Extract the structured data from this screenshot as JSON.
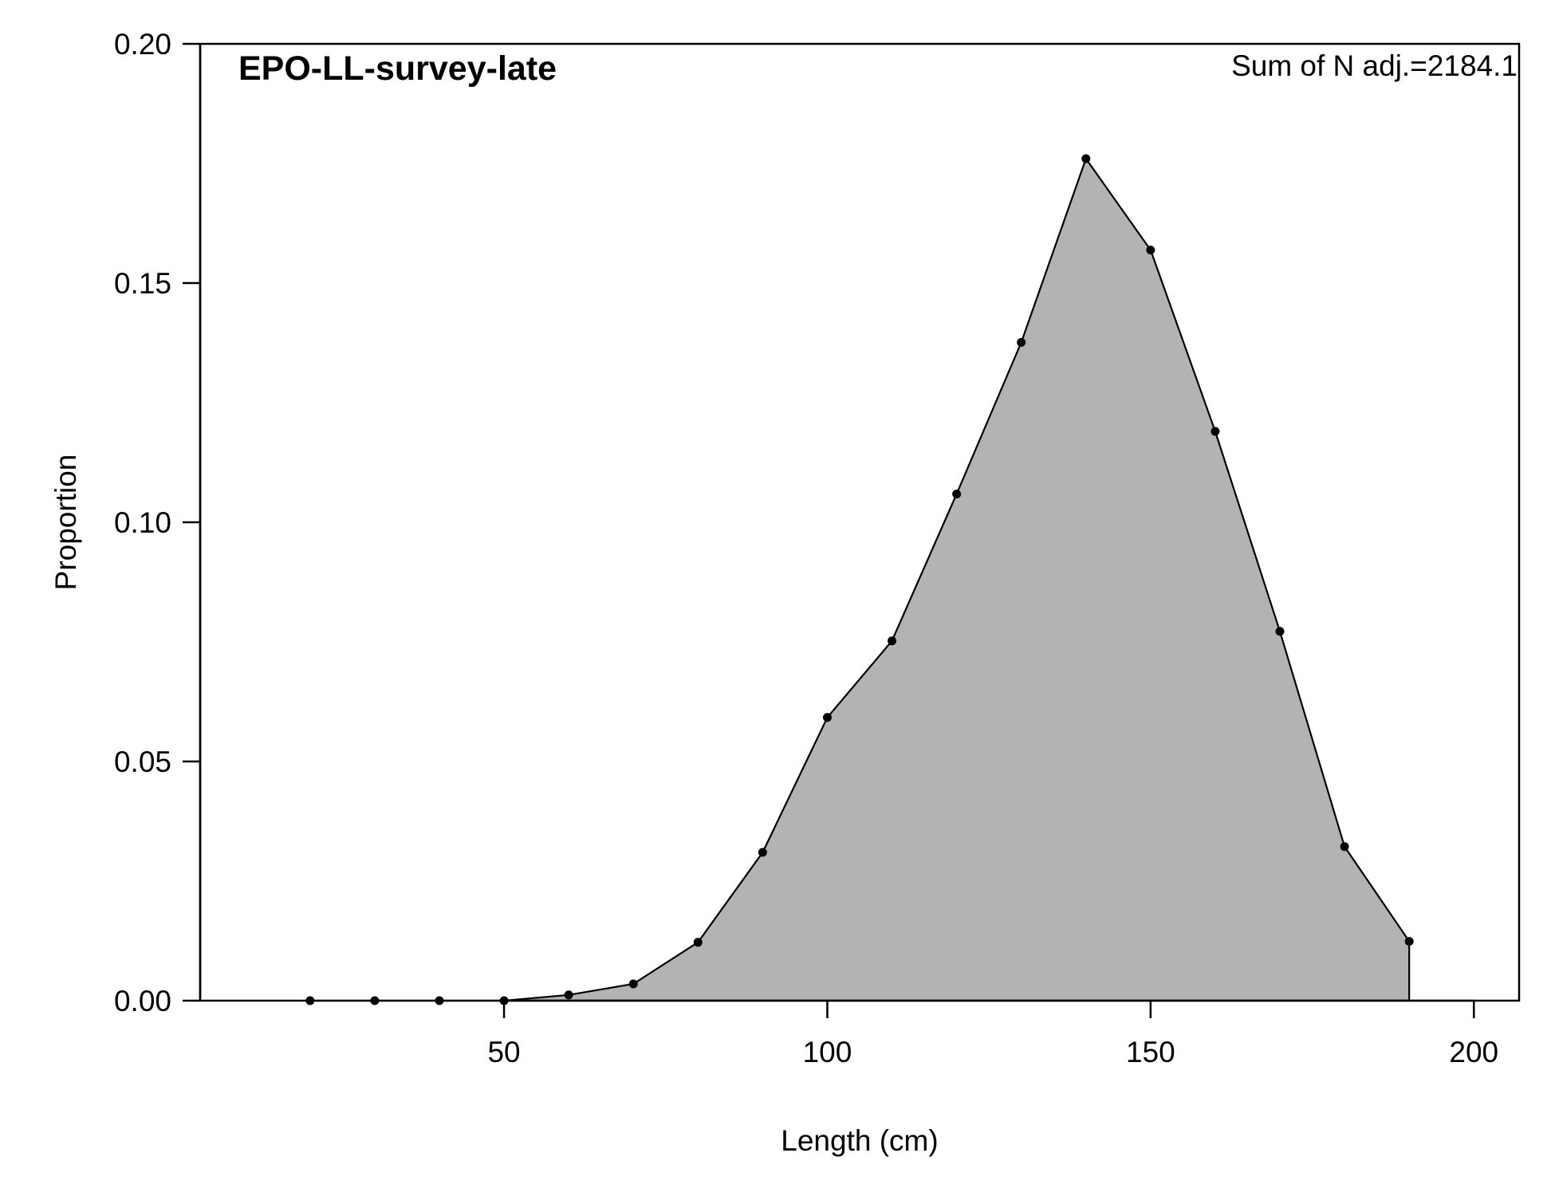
{
  "chart_data": {
    "type": "area",
    "title": "EPO-LL-survey-late",
    "annotation": "Sum of N adj.=2184.1",
    "xlabel": "Length (cm)",
    "ylabel": "Proportion",
    "xlim": [
      3,
      207
    ],
    "ylim": [
      0,
      0.2
    ],
    "x_ticks": [
      50,
      100,
      150,
      200
    ],
    "x_tick_labels": [
      "50",
      "100",
      "150",
      "200"
    ],
    "y_ticks": [
      0,
      0.05,
      0.1,
      0.15,
      0.2
    ],
    "y_tick_labels": [
      "0.00",
      "0.05",
      "0.10",
      "0.15",
      "0.20"
    ],
    "grid": false,
    "legend": "none",
    "fill_color": "#b3b3b3",
    "line_color": "#000000",
    "series": [
      {
        "x": [
          20,
          30,
          40,
          50,
          60,
          70,
          80,
          90,
          100,
          110,
          120,
          130,
          140,
          150,
          160,
          170,
          180,
          190
        ],
        "y": [
          0.0,
          0.0,
          0.0,
          0.0,
          0.0012,
          0.0035,
          0.0122,
          0.031,
          0.0592,
          0.0752,
          0.1059,
          0.1376,
          0.176,
          0.1569,
          0.119,
          0.0772,
          0.0322,
          0.0124
        ]
      }
    ]
  }
}
